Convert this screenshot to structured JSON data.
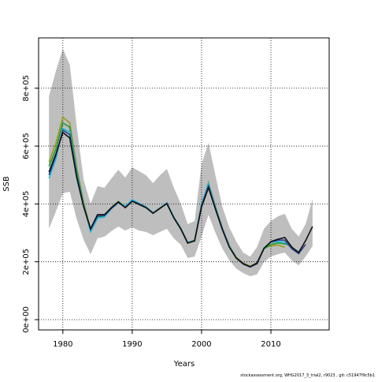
{
  "chart_data": {
    "type": "line",
    "xlabel": "Years",
    "ylabel": "SSB",
    "footer": "stockassessment.org, WHG2017_3_trial2, r9023 , git: c51947f9c5b1",
    "x": [
      1978,
      1979,
      1980,
      1981,
      1982,
      1983,
      1984,
      1985,
      1986,
      1987,
      1988,
      1989,
      1990,
      1991,
      1992,
      1993,
      1994,
      1995,
      1996,
      1997,
      1998,
      1999,
      2000,
      2001,
      2002,
      2003,
      2004,
      2005,
      2006,
      2007,
      2008,
      2009,
      2010,
      2011,
      2012,
      2013,
      2014,
      2015,
      2016
    ],
    "xlim": [
      1976.5,
      2018.4
    ],
    "xticks": [
      1980,
      1990,
      2000,
      2010
    ],
    "ylim": [
      -35500,
      974000
    ],
    "yticks": [
      {
        "value": 0,
        "label": "0e+00"
      },
      {
        "value": 200000,
        "label": "2e+05"
      },
      {
        "value": 400000,
        "label": "4e+05"
      },
      {
        "value": 600000,
        "label": "6e+05"
      },
      {
        "value": 800000,
        "label": "8e+05"
      }
    ],
    "grid": true,
    "band": {
      "color": "#bebebe",
      "upper": [
        772000,
        860000,
        936000,
        881000,
        668000,
        483000,
        401000,
        461000,
        456000,
        488000,
        518000,
        491000,
        527000,
        513000,
        499000,
        472000,
        499000,
        521000,
        456000,
        401000,
        330000,
        341000,
        538000,
        611000,
        499000,
        390000,
        319000,
        270000,
        232000,
        218000,
        251000,
        314000,
        341000,
        357000,
        366000,
        314000,
        287000,
        330000,
        417000
      ],
      "lower": [
        314000,
        374000,
        437000,
        442000,
        347000,
        276000,
        226000,
        281000,
        287000,
        306000,
        322000,
        308000,
        319000,
        308000,
        303000,
        292000,
        303000,
        314000,
        281000,
        259000,
        213000,
        218000,
        287000,
        363000,
        300000,
        246000,
        205000,
        177000,
        161000,
        150000,
        156000,
        199000,
        218000,
        226000,
        232000,
        205000,
        188000,
        218000,
        254000
      ]
    },
    "series": [
      {
        "color": "#9a9a1a",
        "values": [
          545000,
          610000,
          700000,
          680000,
          525000,
          405000,
          312000,
          358000,
          360000,
          388000,
          408000,
          388000,
          411000,
          400000,
          387000,
          367000,
          384000,
          401000,
          352000,
          313000,
          264000,
          271000,
          395000,
          475000,
          392000,
          318000,
          256000,
          216000,
          195000,
          185000,
          196000,
          248000,
          255000,
          258000,
          250000,
          null,
          null,
          null,
          null
        ]
      },
      {
        "color": "#1a9a3a",
        "values": [
          530000,
          590000,
          680000,
          665000,
          515000,
          400000,
          308000,
          356000,
          358000,
          386000,
          408000,
          390000,
          412000,
          401000,
          389000,
          369000,
          386000,
          403000,
          354000,
          315000,
          266000,
          273000,
          398000,
          468000,
          388000,
          314000,
          253000,
          213000,
          192000,
          182000,
          193000,
          245000,
          260000,
          265000,
          262000,
          255000,
          null,
          null,
          null
        ]
      },
      {
        "color": "#22bbdd",
        "values": [
          488000,
          555000,
          660000,
          650000,
          505000,
          395000,
          303000,
          350000,
          355000,
          383000,
          404000,
          392000,
          415000,
          402000,
          390000,
          370000,
          385000,
          404000,
          355000,
          316000,
          267000,
          274000,
          400000,
          472000,
          390000,
          316000,
          255000,
          214000,
          193000,
          183000,
          194000,
          248000,
          268000,
          270000,
          268000,
          248000,
          235000,
          null,
          null
        ]
      },
      {
        "color": "#2c3e8c",
        "values": [
          500000,
          568000,
          655000,
          640000,
          498000,
          392000,
          312000,
          358000,
          360000,
          385000,
          405000,
          388000,
          410000,
          400000,
          388000,
          368000,
          384000,
          402000,
          352000,
          314000,
          265000,
          272000,
          395000,
          462000,
          385000,
          313000,
          252000,
          213000,
          192000,
          182000,
          193000,
          247000,
          268000,
          275000,
          275000,
          245000,
          228000,
          260000,
          null
        ]
      },
      {
        "color": "#111111",
        "values": [
          510000,
          573000,
          647000,
          628000,
          491000,
          390000,
          314000,
          363000,
          363000,
          387000,
          407000,
          387000,
          409000,
          398000,
          387000,
          368000,
          385000,
          401000,
          352000,
          314000,
          265000,
          273000,
          390000,
          456000,
          382000,
          311000,
          251000,
          213000,
          194000,
          183000,
          196000,
          246000,
          270000,
          278000,
          284000,
          251000,
          232000,
          273000,
          322000
        ]
      }
    ]
  }
}
